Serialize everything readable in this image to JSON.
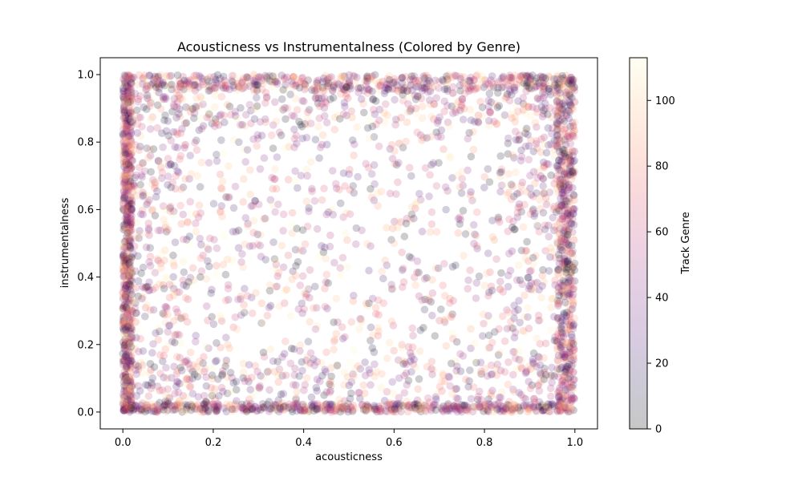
{
  "chart_data": {
    "type": "scatter",
    "title": "Acousticness vs Instrumentalness (Colored by Genre)",
    "xlabel": "acousticness",
    "ylabel": "instrumentalness",
    "xlim": [
      -0.05,
      1.05
    ],
    "ylim": [
      -0.05,
      1.05
    ],
    "xticks": [
      "0.0",
      "0.2",
      "0.4",
      "0.6",
      "0.8",
      "1.0"
    ],
    "yticks": [
      "0.0",
      "0.2",
      "0.4",
      "0.6",
      "0.8",
      "1.0"
    ],
    "grid": false,
    "colormap": "magma",
    "point_alpha": 0.2,
    "colorbar": {
      "label": "Track Genre",
      "range": [
        0,
        113
      ],
      "ticks": [
        "0",
        "20",
        "40",
        "60",
        "80",
        "100"
      ]
    },
    "density_notes": "dense clusters along acousticness≈0, acousticness≈1, instrumentalness≈0 and instrumentalness≈1; sparser interior"
  }
}
